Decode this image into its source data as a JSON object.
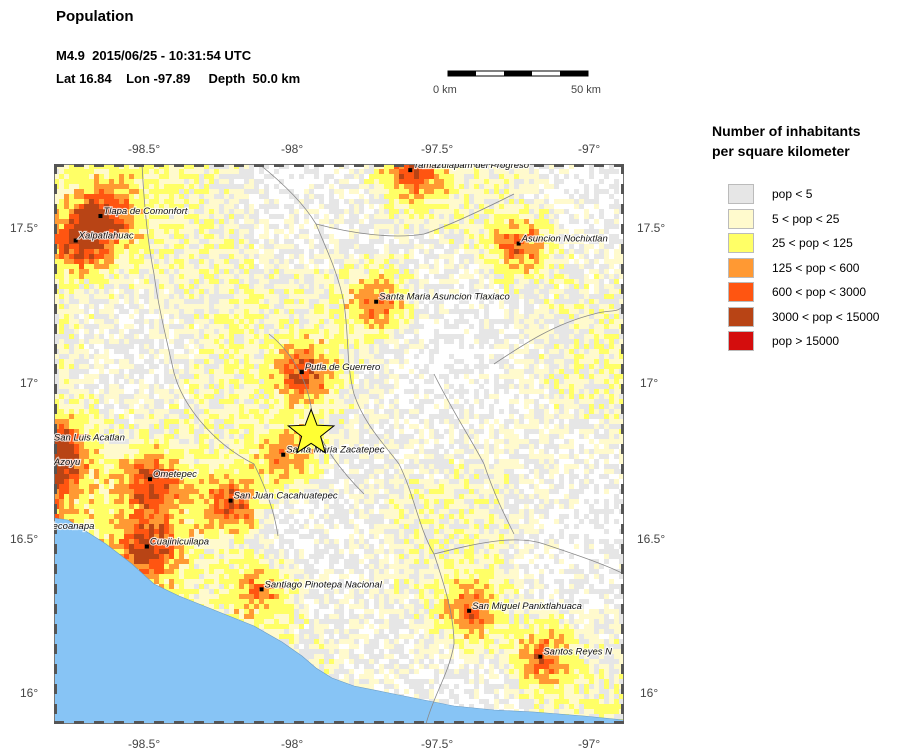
{
  "header": {
    "title": "Population",
    "event_line": "M4.9  2015/06/25 - 10:31:54 UTC",
    "location_line": "Lat 16.84    Lon -97.89     Depth  50.0 km"
  },
  "scale_bar": {
    "start_label": "0 km",
    "end_label": "50 km"
  },
  "map": {
    "lon_range": [
      -98.72,
      -96.88
    ],
    "lat_range": [
      15.89,
      17.72
    ],
    "lon_ticks": [
      "-98.5°",
      "-98°",
      "-97.5°",
      "-97°"
    ],
    "lat_ticks": [
      "17.5°",
      "17°",
      "16.5°",
      "16°"
    ],
    "epicenter": {
      "lat": 16.84,
      "lon": -97.89,
      "marker": "star",
      "color": "#ffff33"
    },
    "ocean_color": "#87c4f5",
    "cities": [
      {
        "name": "Tlapa de Comonfort",
        "lat": 17.55,
        "lon": -98.57
      },
      {
        "name": "Xalpatlahuac",
        "lat": 17.47,
        "lon": -98.65
      },
      {
        "name": "Tamazulapam del Progreso",
        "lat": 17.7,
        "lon": -97.57
      },
      {
        "name": "Asuncion Nochixtlan",
        "lat": 17.46,
        "lon": -97.22
      },
      {
        "name": "Santa Maria Asuncion Tlaxiaco",
        "lat": 17.27,
        "lon": -97.68
      },
      {
        "name": "Putla de Guerrero",
        "lat": 17.04,
        "lon": -97.92
      },
      {
        "name": "San Luis Acatlan",
        "lat": 16.81,
        "lon": -98.73
      },
      {
        "name": "Santa Maria Zacatepec",
        "lat": 16.77,
        "lon": -97.98
      },
      {
        "name": "Azoyu",
        "lat": 16.73,
        "lon": -98.73
      },
      {
        "name": "Ometepec",
        "lat": 16.69,
        "lon": -98.41
      },
      {
        "name": "San Juan Cacahuatepec",
        "lat": 16.62,
        "lon": -98.15
      },
      {
        "name": "Tecoanapa",
        "lat": 16.52,
        "lon": -98.75
      },
      {
        "name": "Cuajinicuilapa",
        "lat": 16.47,
        "lon": -98.42
      },
      {
        "name": "Santiago Pinotepa Nacional",
        "lat": 16.33,
        "lon": -98.05
      },
      {
        "name": "San Miguel Panixtlahuaca",
        "lat": 16.26,
        "lon": -97.38
      },
      {
        "name": "Santos Reyes N",
        "lat": 16.11,
        "lon": -97.15
      }
    ]
  },
  "legend": {
    "title_line1": "Number of inhabitants",
    "title_line2": "per square kilometer",
    "items": [
      {
        "label": "pop < 5",
        "color": "#e6e6e6"
      },
      {
        "label": "5 < pop < 25",
        "color": "#fffacd"
      },
      {
        "label": "25 < pop < 125",
        "color": "#ffff66"
      },
      {
        "label": "125 < pop < 600",
        "color": "#ff9933"
      },
      {
        "label": "600 < pop < 3000",
        "color": "#ff5511"
      },
      {
        "label": "3000 < pop < 15000",
        "color": "#b84415"
      },
      {
        "label": "pop > 15000",
        "color": "#d40d0d"
      }
    ]
  }
}
